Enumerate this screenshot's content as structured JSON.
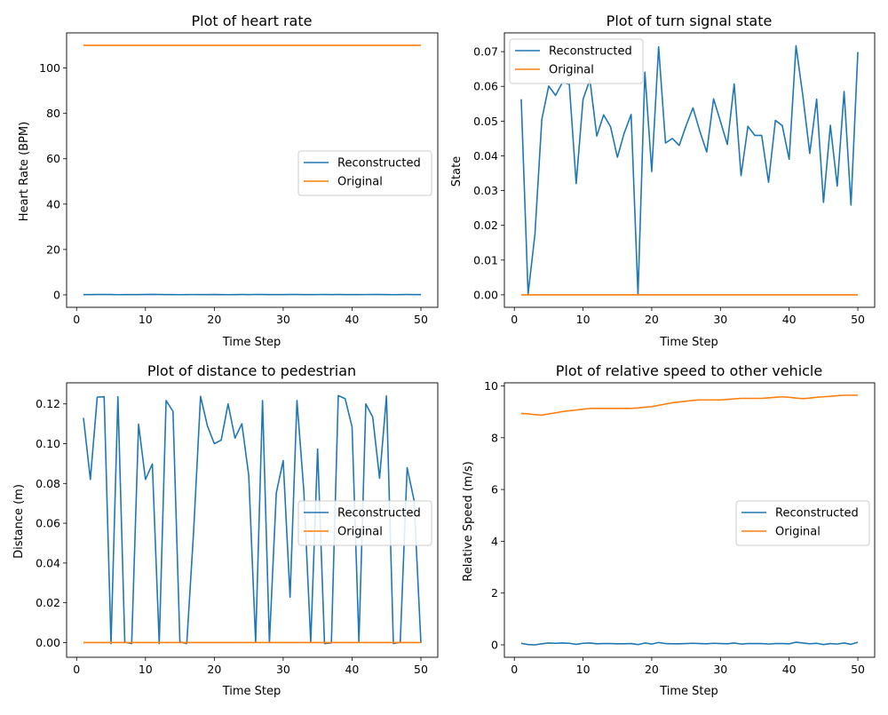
{
  "colors": {
    "reconstructed": "#1f77b4",
    "original": "#ff7f0e"
  },
  "chart_data": [
    {
      "type": "line",
      "title": "Plot of heart rate",
      "xlabel": "Time Step",
      "ylabel": "Heart Rate (BPM)",
      "xlim": [
        -1.45,
        52.45
      ],
      "ylim": [
        -5.5,
        115.5
      ],
      "xticks": [
        0,
        10,
        20,
        30,
        40,
        50
      ],
      "yticks": [
        0,
        20,
        40,
        60,
        80,
        100
      ],
      "ytick_labels": [
        "0",
        "20",
        "40",
        "60",
        "80",
        "100"
      ],
      "legend": "center-right",
      "x": [
        1,
        2,
        3,
        4,
        5,
        6,
        7,
        8,
        9,
        10,
        11,
        12,
        13,
        14,
        15,
        16,
        17,
        18,
        19,
        20,
        21,
        22,
        23,
        24,
        25,
        26,
        27,
        28,
        29,
        30,
        31,
        32,
        33,
        34,
        35,
        36,
        37,
        38,
        39,
        40,
        41,
        42,
        43,
        44,
        45,
        46,
        47,
        48,
        49,
        50
      ],
      "series": [
        {
          "name": "Reconstructed",
          "values": [
            0.12,
            0.1,
            0.15,
            0.18,
            0.14,
            0.08,
            0.1,
            0.12,
            0.09,
            0.15,
            0.2,
            0.16,
            0.12,
            0.1,
            0.08,
            0.11,
            0.13,
            0.09,
            0.12,
            0.15,
            0.1,
            0.08,
            0.12,
            0.14,
            0.11,
            0.18,
            0.15,
            0.1,
            0.09,
            0.12,
            0.14,
            0.16,
            0.12,
            0.1,
            0.13,
            0.15,
            0.11,
            0.14,
            0.12,
            0.09,
            0.1,
            0.13,
            0.15,
            0.17,
            0.12,
            0.08,
            0.11,
            0.14,
            0.1,
            0.12
          ]
        },
        {
          "name": "Original",
          "values": [
            110,
            110,
            110,
            110,
            110,
            110,
            110,
            110,
            110,
            110,
            110,
            110,
            110,
            110,
            110,
            110,
            110,
            110,
            110,
            110,
            110,
            110,
            110,
            110,
            110,
            110,
            110,
            110,
            110,
            110,
            110,
            110,
            110,
            110,
            110,
            110,
            110,
            110,
            110,
            110,
            110,
            110,
            110,
            110,
            110,
            110,
            110,
            110,
            110,
            110
          ]
        }
      ]
    },
    {
      "type": "line",
      "title": "Plot of turn signal state",
      "xlabel": "Time Step",
      "ylabel": "State",
      "xlim": [
        -1.45,
        52.45
      ],
      "ylim": [
        -0.0036,
        0.0754
      ],
      "xticks": [
        0,
        10,
        20,
        30,
        40,
        50
      ],
      "yticks": [
        0,
        0.01,
        0.02,
        0.03,
        0.04,
        0.05,
        0.06,
        0.07
      ],
      "ytick_labels": [
        "0.00",
        "0.01",
        "0.02",
        "0.03",
        "0.04",
        "0.05",
        "0.06",
        "0.07"
      ],
      "legend": "upper-left",
      "x": [
        1,
        2,
        3,
        4,
        5,
        6,
        7,
        8,
        9,
        10,
        11,
        12,
        13,
        14,
        15,
        16,
        17,
        18,
        19,
        20,
        21,
        22,
        23,
        24,
        25,
        26,
        27,
        28,
        29,
        30,
        31,
        32,
        33,
        34,
        35,
        36,
        37,
        38,
        39,
        40,
        41,
        42,
        43,
        44,
        45,
        46,
        47,
        48,
        49,
        50
      ],
      "series": [
        {
          "name": "Reconstructed",
          "values": [
            0.0563,
            0.0002,
            0.0175,
            0.0505,
            0.0601,
            0.0574,
            0.0611,
            0.0606,
            0.032,
            0.0563,
            0.0619,
            0.0457,
            0.0518,
            0.0484,
            0.0396,
            0.0466,
            0.0519,
            0.0,
            0.0641,
            0.0355,
            0.0714,
            0.0437,
            0.045,
            0.043,
            0.0487,
            0.0538,
            0.0471,
            0.0411,
            0.0564,
            0.0499,
            0.0433,
            0.0607,
            0.0343,
            0.0485,
            0.0459,
            0.0459,
            0.0324,
            0.0502,
            0.0487,
            0.039,
            0.0717,
            0.0572,
            0.0407,
            0.0563,
            0.0266,
            0.0488,
            0.0313,
            0.0585,
            0.0258,
            0.0699
          ]
        },
        {
          "name": "Original",
          "values": [
            0,
            0,
            0,
            0,
            0,
            0,
            0,
            0,
            0,
            0,
            0,
            0,
            0,
            0,
            0,
            0,
            0,
            0,
            0,
            0,
            0,
            0,
            0,
            0,
            0,
            0,
            0,
            0,
            0,
            0,
            0,
            0,
            0,
            0,
            0,
            0,
            0,
            0,
            0,
            0,
            0,
            0,
            0,
            0,
            0,
            0,
            0,
            0,
            0,
            0
          ]
        }
      ]
    },
    {
      "type": "line",
      "title": "Plot of distance to pedestrian",
      "xlabel": "Time Step",
      "ylabel": "Distance (m)",
      "xlim": [
        -1.45,
        52.45
      ],
      "ylim": [
        -0.0074,
        0.1306
      ],
      "xticks": [
        0,
        10,
        20,
        30,
        40,
        50
      ],
      "yticks": [
        0,
        0.02,
        0.04,
        0.06,
        0.08,
        0.1,
        0.12
      ],
      "ytick_labels": [
        "0.00",
        "0.02",
        "0.04",
        "0.06",
        "0.08",
        "0.10",
        "0.12"
      ],
      "legend": "center-right",
      "x": [
        1,
        2,
        3,
        4,
        5,
        6,
        7,
        8,
        9,
        10,
        11,
        12,
        13,
        14,
        15,
        16,
        17,
        18,
        19,
        20,
        21,
        22,
        23,
        24,
        25,
        26,
        27,
        28,
        29,
        30,
        31,
        32,
        33,
        34,
        35,
        36,
        37,
        38,
        39,
        40,
        41,
        42,
        43,
        44,
        45,
        46,
        47,
        48,
        49,
        50
      ],
      "series": [
        {
          "name": "Reconstructed",
          "values": [
            0.113,
            0.082,
            0.1234,
            0.1236,
            -0.0005,
            0.1236,
            0.0002,
            -0.0005,
            0.1098,
            0.082,
            0.0898,
            -0.0005,
            0.1217,
            0.1162,
            0.0003,
            -0.0005,
            0.0562,
            0.1238,
            0.1089,
            0.1,
            0.1018,
            0.12,
            0.1028,
            0.11,
            0.084,
            0.0002,
            0.1217,
            0.0,
            0.0752,
            0.0915,
            0.0228,
            0.1217,
            0.0762,
            0.0002,
            0.0973,
            -0.0005,
            -0.0002,
            0.1242,
            0.1226,
            0.1085,
            0.0002,
            0.12,
            0.1134,
            0.0826,
            0.124,
            -0.0005,
            0.0002,
            0.0879,
            0.0716,
            -0.0002
          ]
        },
        {
          "name": "Original",
          "values": [
            0,
            0,
            0,
            0,
            0,
            0,
            0,
            0,
            0,
            0,
            0,
            0,
            0,
            0,
            0,
            0,
            0,
            0,
            0,
            0,
            0,
            0,
            0,
            0,
            0,
            0,
            0,
            0,
            0,
            0,
            0,
            0,
            0,
            0,
            0,
            0,
            0,
            0,
            0,
            0,
            0,
            0,
            0,
            0,
            0,
            0,
            0,
            0,
            0,
            0
          ]
        }
      ]
    },
    {
      "type": "line",
      "title": "Plot of relative speed to other vehicle",
      "xlabel": "Time Step",
      "ylabel": "Relative Speed (m/s)",
      "xlim": [
        -1.45,
        52.45
      ],
      "ylim": [
        -0.48,
        10.12
      ],
      "xticks": [
        0,
        10,
        20,
        30,
        40,
        50
      ],
      "yticks": [
        0,
        2,
        4,
        6,
        8,
        10
      ],
      "ytick_labels": [
        "0",
        "2",
        "4",
        "6",
        "8",
        "10"
      ],
      "legend": "center-right",
      "x": [
        1,
        2,
        3,
        4,
        5,
        6,
        7,
        8,
        9,
        10,
        11,
        12,
        13,
        14,
        15,
        16,
        17,
        18,
        19,
        20,
        21,
        22,
        23,
        24,
        25,
        26,
        27,
        28,
        29,
        30,
        31,
        32,
        33,
        34,
        35,
        36,
        37,
        38,
        39,
        40,
        41,
        42,
        43,
        44,
        45,
        46,
        47,
        48,
        49,
        50
      ],
      "series": [
        {
          "name": "Reconstructed",
          "values": [
            0.06,
            0.01,
            0.0,
            0.04,
            0.07,
            0.06,
            0.07,
            0.06,
            0.02,
            0.06,
            0.07,
            0.04,
            0.05,
            0.05,
            0.04,
            0.04,
            0.05,
            0.01,
            0.07,
            0.03,
            0.09,
            0.05,
            0.04,
            0.04,
            0.05,
            0.06,
            0.05,
            0.04,
            0.06,
            0.05,
            0.04,
            0.07,
            0.03,
            0.05,
            0.05,
            0.05,
            0.03,
            0.05,
            0.05,
            0.04,
            0.1,
            0.07,
            0.04,
            0.06,
            0.01,
            0.05,
            0.03,
            0.07,
            0.02,
            0.1
          ]
        },
        {
          "name": "Original",
          "values": [
            8.94,
            8.92,
            8.89,
            8.87,
            8.92,
            8.96,
            9.01,
            9.04,
            9.07,
            9.1,
            9.13,
            9.13,
            9.13,
            9.13,
            9.13,
            9.13,
            9.13,
            9.15,
            9.18,
            9.2,
            9.25,
            9.3,
            9.35,
            9.38,
            9.41,
            9.44,
            9.46,
            9.46,
            9.46,
            9.46,
            9.48,
            9.5,
            9.52,
            9.52,
            9.52,
            9.52,
            9.54,
            9.56,
            9.58,
            9.56,
            9.53,
            9.51,
            9.53,
            9.56,
            9.58,
            9.6,
            9.62,
            9.64,
            9.64,
            9.64
          ]
        }
      ]
    }
  ]
}
